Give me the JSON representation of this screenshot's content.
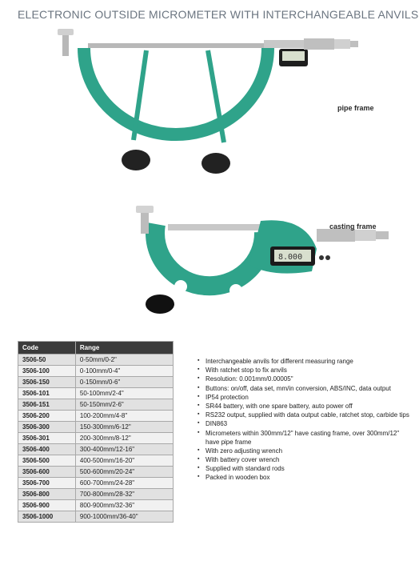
{
  "title": "ELECTRONIC OUTSIDE MICROMETER WITH INTERCHANGEABLE ANVILS",
  "labels": {
    "pipe": "pipe frame",
    "casting": "casting frame"
  },
  "colors": {
    "tool_green": "#2fa38a",
    "tool_grey": "#b8b8b8",
    "tool_dark": "#444444",
    "text_title": "#6b7580",
    "table_header_bg": "#3b3b3b",
    "table_border": "#a8a8a8"
  },
  "table": {
    "columns": [
      "Code",
      "Range"
    ],
    "rows": [
      [
        "3506-50",
        "0-50mm/0-2\""
      ],
      [
        "3506-100",
        "0-100mm/0-4\""
      ],
      [
        "3506-150",
        "0-150mm/0-6\""
      ],
      [
        "3506-101",
        "50-100mm/2-4\""
      ],
      [
        "3506-151",
        "50-150mm/2-6\""
      ],
      [
        "3506-200",
        "100-200mm/4-8\""
      ],
      [
        "3506-300",
        "150-300mm/6-12\""
      ],
      [
        "3506-301",
        "200-300mm/8-12\""
      ],
      [
        "3506-400",
        "300-400mm/12-16\""
      ],
      [
        "3506-500",
        "400-500mm/16-20\""
      ],
      [
        "3506-600",
        "500-600mm/20-24\""
      ],
      [
        "3506-700",
        "600-700mm/24-28\""
      ],
      [
        "3506-800",
        "700-800mm/28-32\""
      ],
      [
        "3506-900",
        "800-900mm/32-36\""
      ],
      [
        "3506-1000",
        "900-1000mm/36-40\""
      ]
    ]
  },
  "features": [
    "Interchangeable anvils for different measuring range",
    "With ratchet stop to fix anvils",
    "Resolution: 0.001mm/0.00005\"",
    "Buttons: on/off, data set, mm/in conversion, ABS/INC, data output",
    "IP54 protection",
    "SR44 battery, with one spare battery, auto power off",
    "RS232 output, supplied with data output cable, ratchet stop, carbide tips",
    "DIN863",
    "Micrometers within 300mm/12\" have casting frame, over 300mm/12\" have pipe frame",
    "With zero adjusting wrench",
    "With battery cover wrench",
    "Supplied with standard rods",
    "Packed in wooden box"
  ]
}
